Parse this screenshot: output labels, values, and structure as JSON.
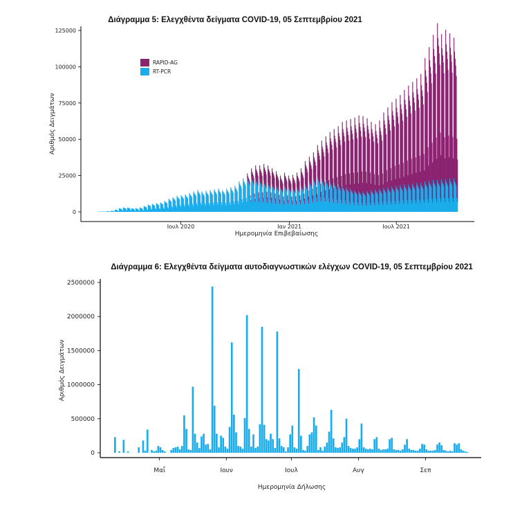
{
  "chart_data": [
    {
      "type": "bar",
      "stacked": true,
      "title": "Διάγραμμα 5: Ελεγχθέντα δείγματα COVID-19, 05 Σεπτεμβρίου 2021",
      "xlabel": "Ημερομηνία Επιβεβαίωσης",
      "ylabel": "Αριθμός Δειγμάτων",
      "ylim": [
        0,
        125000
      ],
      "yticks": [
        "0",
        "25000",
        "50000",
        "75000",
        "100000",
        "125000"
      ],
      "xticks": [
        "Ιουλ 2020",
        "Ιαν 2021",
        "Ιουλ 2021"
      ],
      "legend_position": "top-left",
      "x_period": "daily, Feb 2020 – Sep 2021",
      "series": [
        {
          "name": "RAPID-AG",
          "color": "#8B2371",
          "weekly_peak": [
            0,
            0,
            0,
            0,
            0,
            0,
            0,
            0,
            0,
            0,
            0,
            0,
            0,
            0,
            0,
            0,
            0,
            0,
            0,
            0,
            0,
            0,
            0,
            0,
            0,
            0,
            0,
            0,
            0,
            0,
            0,
            0,
            0,
            0,
            0,
            0,
            3000,
            6000,
            9000,
            10000,
            12000,
            12000,
            11000,
            10000,
            8000,
            9000,
            8000,
            9000,
            10000,
            12000,
            16000,
            17000,
            18000,
            22000,
            26000,
            30000,
            34000,
            37000,
            40000,
            44000,
            46000,
            48000,
            50000,
            52000,
            52000,
            50000,
            47000,
            45000,
            47000,
            52000,
            55000,
            58000,
            60000,
            62000,
            65000,
            68000,
            70000,
            72000,
            75000,
            85000,
            92000,
            100000,
            108000,
            100000,
            103000,
            100000,
            97000
          ]
        },
        {
          "name": "RT-PCR",
          "color": "#1AACEB",
          "weekly_peak": [
            200,
            300,
            500,
            700,
            1500,
            2500,
            3000,
            3000,
            2500,
            2500,
            3000,
            4000,
            5000,
            5500,
            6000,
            6500,
            7500,
            9000,
            10000,
            11000,
            11500,
            12000,
            13000,
            14000,
            15000,
            14000,
            14500,
            15000,
            15500,
            16000,
            15000,
            16000,
            17000,
            18000,
            21000,
            23000,
            23500,
            24000,
            23000,
            22000,
            21000,
            20000,
            19000,
            18000,
            17000,
            18000,
            17000,
            16500,
            17000,
            18000,
            19000,
            21000,
            23000,
            24000,
            23000,
            22000,
            21000,
            20000,
            19000,
            18000,
            17000,
            16000,
            15000,
            14500,
            14000,
            14500,
            15000,
            15500,
            16000,
            16500,
            17000,
            17500,
            18000,
            18500,
            19000,
            19000,
            19500,
            20000,
            20000,
            21000,
            21500,
            22000,
            22000,
            22500,
            22500,
            23000,
            23000
          ]
        }
      ]
    },
    {
      "type": "bar",
      "title": "Διάγραμμα 6: Ελεγχθέντα δείγματα αυτοδιαγνωστικών ελέγχων COVID-19, 05 Σεπτεμβρίου 2021",
      "xlabel": "Ημερομηνία Δήλωσης",
      "ylabel": "Αριθμός Δειγμάτων",
      "ylim": [
        0,
        2500000
      ],
      "yticks": [
        "0",
        "500000",
        "1000000",
        "1500000",
        "2000000",
        "2500000"
      ],
      "xticks": [
        "Μαΐ",
        "Ιουν",
        "Ιουλ",
        "Αυγ",
        "Σεπ"
      ],
      "color": "#1AACEB",
      "start_date": "2021-04-10",
      "values": [
        230000,
        0,
        20000,
        0,
        190000,
        0,
        20000,
        0,
        0,
        0,
        0,
        80000,
        0,
        180000,
        30000,
        340000,
        0,
        40000,
        20000,
        30000,
        100000,
        80000,
        40000,
        20000,
        0,
        0,
        40000,
        70000,
        80000,
        90000,
        50000,
        100000,
        550000,
        350000,
        50000,
        40000,
        970000,
        280000,
        150000,
        70000,
        240000,
        280000,
        120000,
        130000,
        50000,
        2440000,
        690000,
        280000,
        80000,
        250000,
        220000,
        90000,
        60000,
        380000,
        1620000,
        560000,
        300000,
        100000,
        90000,
        60000,
        510000,
        2020000,
        350000,
        90000,
        270000,
        70000,
        90000,
        420000,
        1850000,
        410000,
        200000,
        180000,
        280000,
        200000,
        70000,
        1780000,
        210000,
        100000,
        80000,
        20000,
        80000,
        270000,
        400000,
        80000,
        60000,
        1230000,
        250000,
        40000,
        30000,
        100000,
        270000,
        300000,
        520000,
        400000,
        40000,
        80000,
        30000,
        90000,
        150000,
        310000,
        630000,
        210000,
        80000,
        70000,
        80000,
        150000,
        230000,
        500000,
        100000,
        70000,
        60000,
        60000,
        80000,
        200000,
        430000,
        80000,
        60000,
        50000,
        60000,
        50000,
        200000,
        230000,
        60000,
        40000,
        50000,
        50000,
        60000,
        200000,
        220000,
        50000,
        40000,
        40000,
        30000,
        50000,
        120000,
        200000,
        60000,
        40000,
        40000,
        30000,
        30000,
        60000,
        130000,
        120000,
        50000,
        30000,
        30000,
        30000,
        40000,
        120000,
        150000,
        110000,
        40000,
        30000,
        20000,
        30000,
        20000,
        140000,
        120000,
        140000,
        50000,
        30000,
        20000,
        10000
      ]
    }
  ]
}
